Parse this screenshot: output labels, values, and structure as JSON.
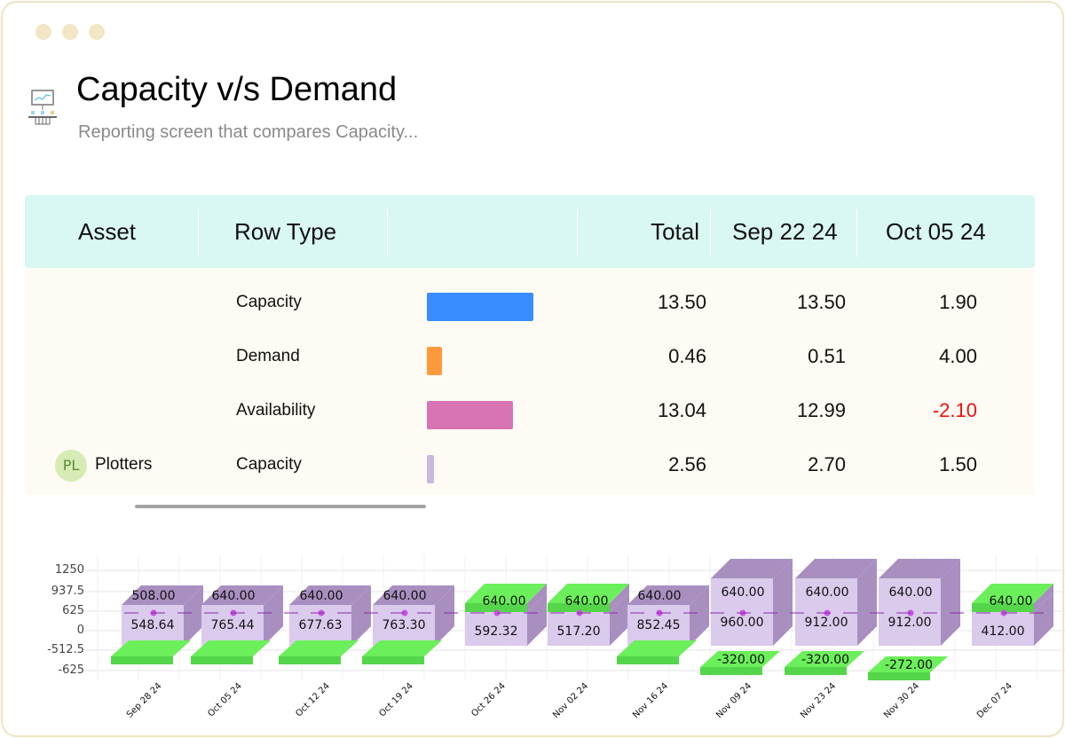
{
  "header": {
    "title": "Capacity v/s Demand",
    "subtitle": "Reporting screen that compares Capacity..."
  },
  "table": {
    "columns": [
      "Asset",
      "Row Type",
      "",
      "Total",
      "Sep 22 24",
      "Oct 05 24"
    ],
    "rows": [
      {
        "asset": "",
        "avatar": "",
        "type": "Capacity",
        "bar_fraction": 1.0,
        "bar_color": "#3a8dff",
        "total": "13.50",
        "c1": "13.50",
        "c2": "1.90",
        "c2_negative": false
      },
      {
        "asset": "",
        "avatar": "",
        "type": "Demand",
        "bar_fraction": 0.14,
        "bar_color": "#ff9a3c",
        "total": "0.46",
        "c1": "0.51",
        "c2": "4.00",
        "c2_negative": false
      },
      {
        "asset": "",
        "avatar": "",
        "type": "Availability",
        "bar_fraction": 0.81,
        "bar_color": "#d974b4",
        "total": "13.04",
        "c1": "12.99",
        "c2": "-2.10",
        "c2_negative": true
      },
      {
        "asset": "Plotters",
        "avatar": "PL",
        "type": "Capacity",
        "bar_fraction": 0.07,
        "bar_color": "#c9b8e0",
        "total": "2.56",
        "c1": "2.70",
        "c2": "1.50",
        "c2_negative": false
      }
    ]
  },
  "chart_data": {
    "type": "bar",
    "style": "3d-stacked",
    "y_ticks": [
      "1250",
      "937.5",
      "625",
      "0",
      "-512.5",
      "-625"
    ],
    "categories": [
      "Sep 28 24",
      "Oct 05 24",
      "Oct 12 24",
      "Oct 19 24",
      "Oct 26 24",
      "Nov 02 24",
      "Nov 16 24",
      "Nov 09 24",
      "Nov 23 24",
      "Nov 30 24",
      "Dec 07 24"
    ],
    "series": [
      {
        "name": "Capacity",
        "color": "#a98fc0",
        "labels": [
          "508.00",
          "640.00",
          "640.00",
          "640.00",
          "640.00",
          "640.00",
          "640.00",
          "640.00",
          "640.00",
          "640.00",
          "640.00"
        ],
        "values": [
          508,
          640,
          640,
          640,
          640,
          640,
          640,
          640,
          640,
          640,
          640
        ]
      },
      {
        "name": "Demand",
        "color": "#dacaec",
        "labels": [
          "548.64",
          "765.44",
          "677.63",
          "763.30",
          "592.32",
          "517.20",
          "852.45",
          "960.00",
          "912.00",
          "912.00",
          "412.00"
        ],
        "values": [
          548.64,
          765.44,
          677.63,
          763.3,
          592.32,
          517.2,
          852.45,
          960,
          912,
          912,
          412
        ]
      },
      {
        "name": "Availability",
        "color": "#6bef5a",
        "labels": [
          "",
          "",
          "",
          "",
          "",
          "",
          "",
          "-320.00",
          "-320.00",
          "-272.00",
          ""
        ],
        "values": [
          -40.64,
          -125.44,
          -37.63,
          -123.3,
          47.68,
          122.8,
          -212.45,
          -320,
          -320,
          -272,
          228
        ]
      }
    ],
    "reference_line": {
      "value": 625,
      "color": "#8a2aa8",
      "style": "dashed"
    }
  }
}
